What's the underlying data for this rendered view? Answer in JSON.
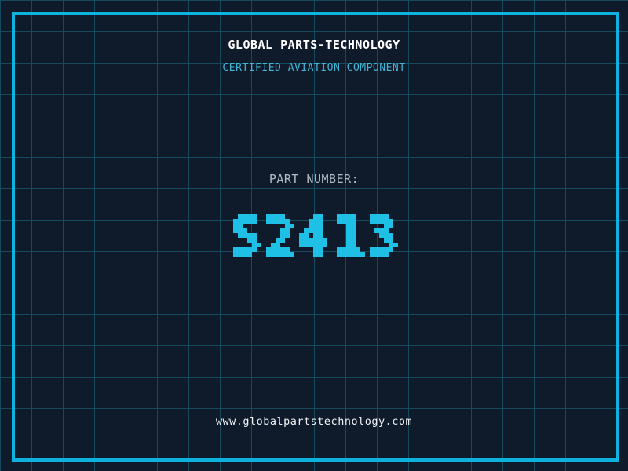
{
  "header": {
    "title": "GLOBAL PARTS-TECHNOLOGY",
    "subtitle": "CERTIFIED AVIATION COMPONENT"
  },
  "part": {
    "label": "PART NUMBER:",
    "value": "S2413"
  },
  "footer": {
    "url": "www.globalpartstechnology.com"
  },
  "colors": {
    "background": "#0f1a2b",
    "grid_line": "#164a5f",
    "frame": "#0db3de",
    "title": "#ffffff",
    "subtitle": "#41b5d6",
    "label": "#b3bcc6",
    "part_number": "#1fc0e6",
    "url": "#eef2f4"
  }
}
